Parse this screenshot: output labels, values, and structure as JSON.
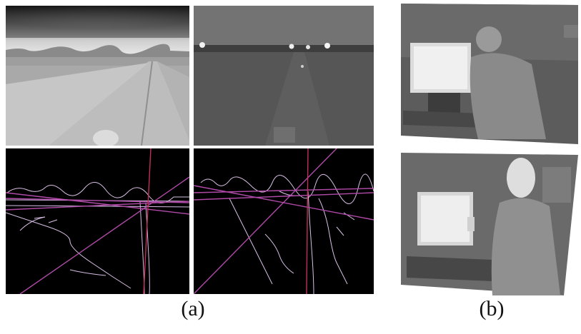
{
  "figure": {
    "captions": {
      "a": "(a)",
      "b": "(b)"
    },
    "panels": [
      {
        "id": "a-top-left",
        "content": "thermal-road-scene"
      },
      {
        "id": "a-top-right",
        "content": "thermal-night-road-scene"
      },
      {
        "id": "a-bottom-left",
        "content": "edge-map-with-vanishing-lines"
      },
      {
        "id": "a-bottom-right",
        "content": "edge-map-with-vanishing-lines"
      },
      {
        "id": "b-top",
        "content": "thermal-person-at-monitor"
      },
      {
        "id": "b-bottom",
        "content": "thermal-person-at-monitor"
      }
    ],
    "colors": {
      "edge": "#d9bfe6",
      "vanishing_line": "#b04aa8",
      "vertical_line": "#c0305a"
    }
  }
}
